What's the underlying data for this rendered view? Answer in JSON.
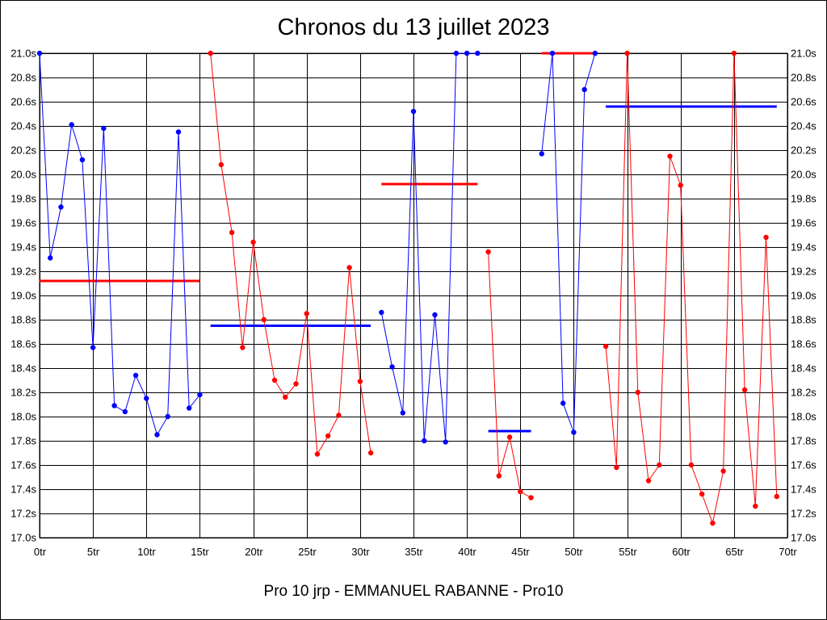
{
  "chart_data": {
    "type": "line",
    "title": "Chronos du 13 juillet 2023",
    "subtitle": "Pro 10 jrp - EMMANUEL RABANNE - Pro10",
    "xlim": [
      0,
      70
    ],
    "ylim": [
      17.0,
      21.0
    ],
    "x_ticks": [
      0,
      5,
      10,
      15,
      20,
      25,
      30,
      35,
      40,
      45,
      50,
      55,
      60,
      65,
      70
    ],
    "x_tick_labels": [
      "0tr",
      "5tr",
      "10tr",
      "15tr",
      "20tr",
      "25tr",
      "30tr",
      "35tr",
      "40tr",
      "45tr",
      "50tr",
      "55tr",
      "60tr",
      "65tr",
      "70tr"
    ],
    "y_ticks": [
      17.0,
      17.2,
      17.4,
      17.6,
      17.8,
      18.0,
      18.2,
      18.4,
      18.6,
      18.8,
      19.0,
      19.2,
      19.4,
      19.6,
      19.8,
      20.0,
      20.2,
      20.4,
      20.6,
      20.8,
      21.0
    ],
    "y_tick_labels": [
      "17.0s",
      "17.2s",
      "17.4s",
      "17.6s",
      "17.8s",
      "18.0s",
      "18.2s",
      "18.4s",
      "18.6s",
      "18.8s",
      "19.0s",
      "19.2s",
      "19.4s",
      "19.6s",
      "19.8s",
      "20.0s",
      "20.2s",
      "20.4s",
      "20.6s",
      "20.8s",
      "21.0s"
    ],
    "grid": true,
    "series": [
      {
        "color": "#0000ff",
        "points": [
          [
            0,
            21.0
          ],
          [
            1,
            19.31
          ],
          [
            2,
            19.73
          ],
          [
            3,
            20.41
          ],
          [
            4,
            20.12
          ],
          [
            5,
            18.57
          ],
          [
            6,
            20.38
          ],
          [
            7,
            18.09
          ],
          [
            8,
            18.04
          ],
          [
            9,
            18.34
          ],
          [
            10,
            18.15
          ],
          [
            11,
            17.85
          ],
          [
            12,
            18.0
          ],
          [
            13,
            20.35
          ],
          [
            14,
            18.07
          ],
          [
            15,
            18.18
          ]
        ]
      },
      {
        "color": "#ff0000",
        "points": [
          [
            16,
            21.0
          ],
          [
            17,
            20.08
          ],
          [
            18,
            19.52
          ],
          [
            19,
            18.57
          ],
          [
            20,
            19.44
          ],
          [
            21,
            18.8
          ],
          [
            22,
            18.3
          ],
          [
            23,
            18.16
          ],
          [
            24,
            18.27
          ],
          [
            25,
            18.85
          ],
          [
            26,
            17.69
          ],
          [
            27,
            17.84
          ],
          [
            28,
            18.01
          ],
          [
            29,
            19.23
          ],
          [
            30,
            18.29
          ],
          [
            31,
            17.7
          ]
        ]
      },
      {
        "color": "#0000ff",
        "points": [
          [
            32,
            18.86
          ],
          [
            33,
            18.41
          ],
          [
            34,
            18.03
          ],
          [
            35,
            20.52
          ],
          [
            36,
            17.8
          ],
          [
            37,
            18.84
          ],
          [
            38,
            17.79
          ],
          [
            39,
            21.0
          ],
          [
            40,
            21.0
          ],
          [
            41,
            21.0
          ]
        ]
      },
      {
        "color": "#ff0000",
        "points": [
          [
            42,
            19.36
          ],
          [
            43,
            17.51
          ],
          [
            44,
            17.83
          ],
          [
            45,
            17.38
          ],
          [
            46,
            17.33
          ]
        ]
      },
      {
        "color": "#0000ff",
        "points": [
          [
            47,
            20.17
          ],
          [
            48,
            21.0
          ],
          [
            49,
            18.11
          ],
          [
            50,
            17.87
          ],
          [
            51,
            20.7
          ],
          [
            52,
            21.0
          ]
        ]
      },
      {
        "color": "#ff0000",
        "points": [
          [
            53,
            18.58
          ],
          [
            54,
            17.58
          ],
          [
            55,
            21.0
          ],
          [
            56,
            18.2
          ],
          [
            57,
            17.47
          ],
          [
            58,
            17.6
          ],
          [
            59,
            20.15
          ],
          [
            60,
            19.91
          ],
          [
            61,
            17.6
          ],
          [
            62,
            17.36
          ],
          [
            63,
            17.12
          ],
          [
            64,
            17.55
          ],
          [
            65,
            21.0
          ],
          [
            66,
            18.22
          ],
          [
            67,
            17.26
          ],
          [
            68,
            19.48
          ],
          [
            69,
            17.34
          ]
        ]
      }
    ],
    "averages": [
      {
        "color": "#ff0000",
        "x": [
          0,
          15
        ],
        "y": 19.12
      },
      {
        "color": "#0000ff",
        "x": [
          16,
          31
        ],
        "y": 18.75
      },
      {
        "color": "#ff0000",
        "x": [
          32,
          41
        ],
        "y": 19.92
      },
      {
        "color": "#0000ff",
        "x": [
          42,
          46
        ],
        "y": 17.88
      },
      {
        "color": "#ff0000",
        "x": [
          47,
          52
        ],
        "y": 21.0
      },
      {
        "color": "#0000ff",
        "x": [
          53,
          69
        ],
        "y": 20.56
      }
    ]
  }
}
